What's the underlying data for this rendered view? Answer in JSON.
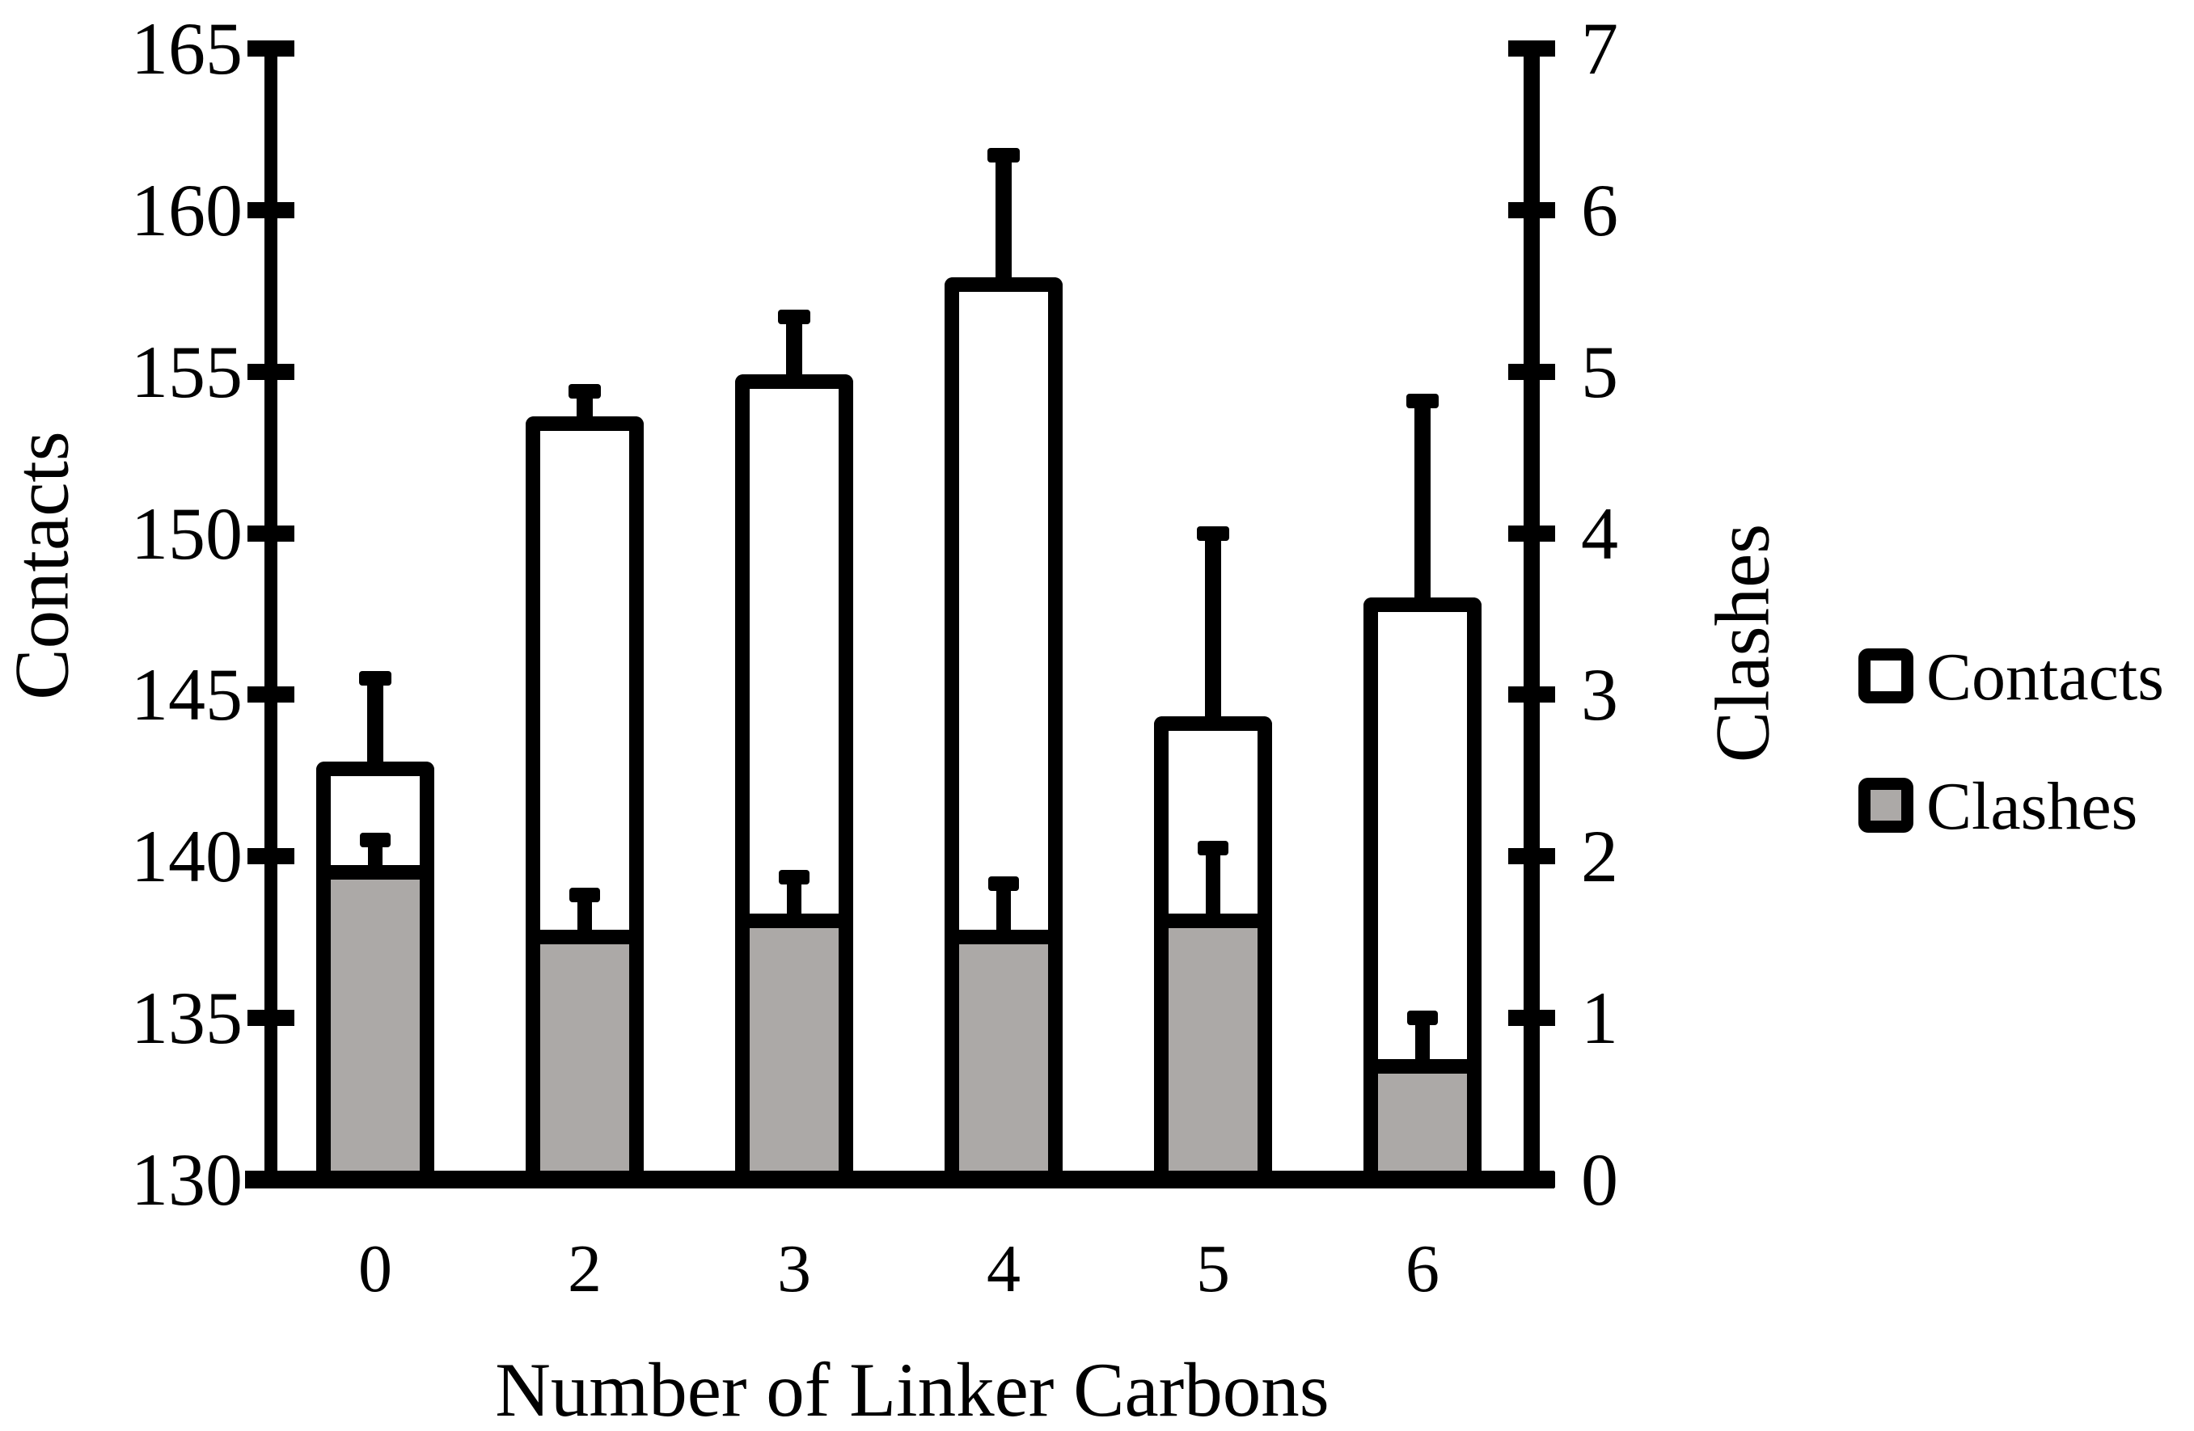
{
  "figure": {
    "background": "#ffffff",
    "ink_color": "#000000",
    "gray_fill": "#ACA9A7"
  },
  "chart_data": {
    "type": "bar",
    "categories": [
      "0",
      "2",
      "3",
      "4",
      "5",
      "6"
    ],
    "xlabel": "Number of Linker Carbons",
    "grid": false,
    "legend_position": "right",
    "series": [
      {
        "name": "Contacts",
        "axis": "left",
        "fill": "#ffffff",
        "outline": "#000000",
        "values": [
          142.7,
          153.4,
          154.7,
          157.7,
          144.1,
          147.8
        ],
        "errors_up": [
          2.8,
          1.0,
          2.0,
          4.0,
          5.9,
          6.3
        ]
      },
      {
        "name": "Clashes",
        "axis": "right",
        "fill": "#ACA9A7",
        "outline": "#000000",
        "values": [
          1.9,
          1.5,
          1.6,
          1.5,
          1.6,
          0.7
        ],
        "errors_up": [
          0.2,
          0.26,
          0.27,
          0.33,
          0.45,
          0.3
        ]
      }
    ],
    "left_axis": {
      "title": "Contacts",
      "min": 130,
      "max": 165,
      "tick_step": 5,
      "ticks": [
        165,
        160,
        155,
        150,
        145,
        140,
        135,
        130
      ]
    },
    "right_axis": {
      "title": "Clashes",
      "min": 0,
      "max": 7,
      "tick_step": 1,
      "ticks": [
        7,
        6,
        5,
        4,
        3,
        2,
        1,
        0
      ]
    },
    "legend": [
      {
        "label": "Contacts",
        "fill": "#ffffff"
      },
      {
        "label": "Clashes",
        "fill": "#ACA9A7"
      }
    ]
  }
}
